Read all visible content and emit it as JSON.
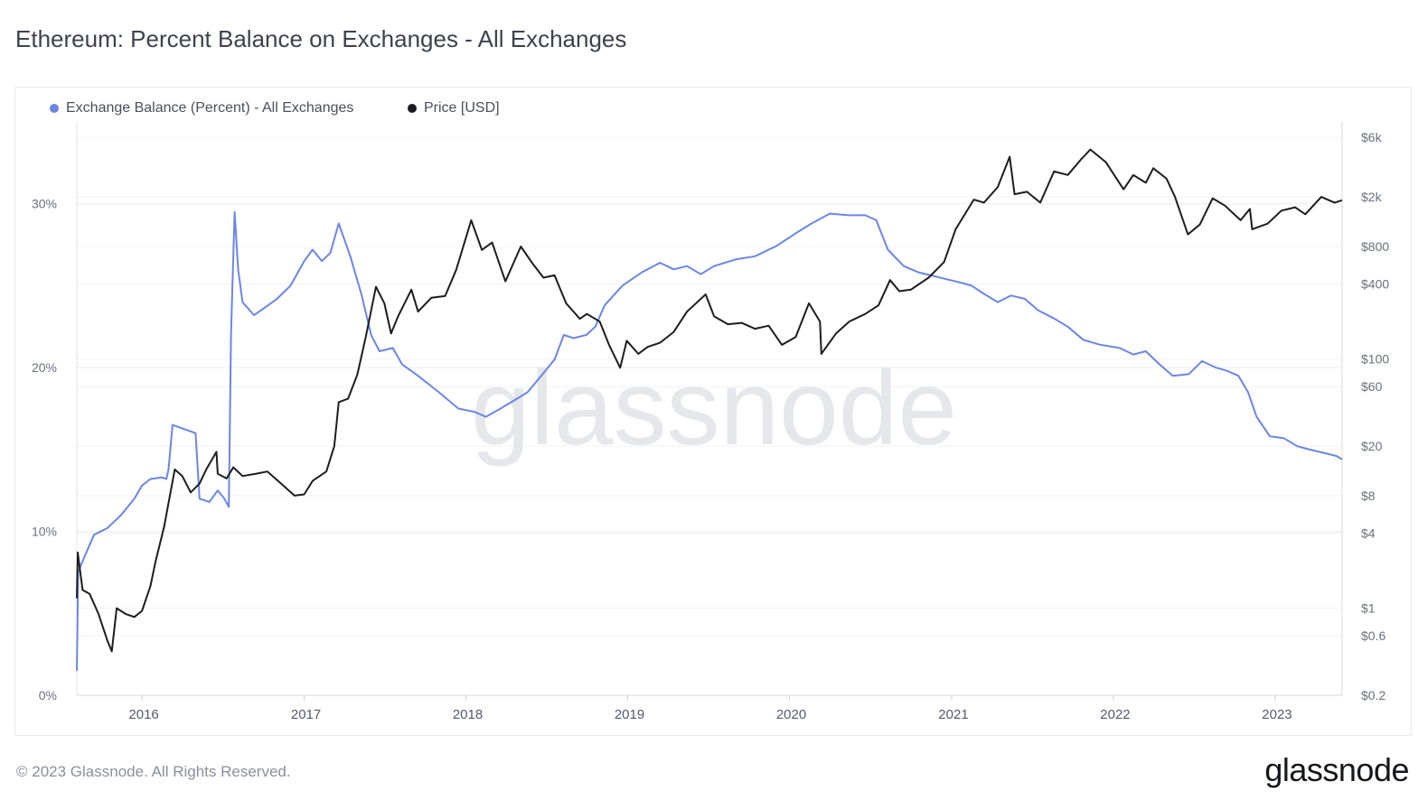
{
  "title": "Ethereum: Percent Balance on Exchanges - All Exchanges",
  "footer": "© 2023 Glassnode. All Rights Reserved.",
  "brand": "glassnode",
  "watermark": "glassnode",
  "colors": {
    "balance": "#6b86e3",
    "price": "#1c1d21",
    "grid": "#ececf0",
    "watermark": "#e6e7ea"
  },
  "chart_data": {
    "type": "line",
    "title": "Ethereum: Percent Balance on Exchanges - All Exchanges",
    "legend_position": "top-left",
    "grid": true,
    "x": {
      "type": "date",
      "range": [
        "2015-08-07",
        "2023-06-01"
      ],
      "ticks": [
        "2016",
        "2017",
        "2018",
        "2019",
        "2020",
        "2021",
        "2022",
        "2023"
      ]
    },
    "y_left": {
      "unit": "percent",
      "range": [
        0,
        35
      ],
      "ticks": [
        {
          "value": 0,
          "label": "0%"
        },
        {
          "value": 10,
          "label": "10%"
        },
        {
          "value": 20,
          "label": "20%"
        },
        {
          "value": 30,
          "label": "30%"
        }
      ]
    },
    "y_right": {
      "scale": "log",
      "unit": "USD",
      "range": [
        0.2,
        8000
      ],
      "ticks": [
        {
          "value": 6000,
          "label": "$6k"
        },
        {
          "value": 2000,
          "label": "$2k"
        },
        {
          "value": 800,
          "label": "$800"
        },
        {
          "value": 400,
          "label": "$400"
        },
        {
          "value": 100,
          "label": "$100"
        },
        {
          "value": 60,
          "label": "$60"
        },
        {
          "value": 20,
          "label": "$20"
        },
        {
          "value": 8,
          "label": "$8"
        },
        {
          "value": 4,
          "label": "$4"
        },
        {
          "value": 1,
          "label": "$1"
        },
        {
          "value": 0.6,
          "label": "$0.6"
        },
        {
          "value": 0.2,
          "label": "$0.2"
        }
      ]
    },
    "series": [
      {
        "name": "Exchange Balance (Percent) - All Exchanges",
        "axis": "left",
        "color": "#6b86e3",
        "points": [
          [
            "2015-08-07",
            1.5
          ],
          [
            "2015-08-10",
            7.5
          ],
          [
            "2015-08-25",
            8.5
          ],
          [
            "2015-09-15",
            9.8
          ],
          [
            "2015-10-15",
            10.2
          ],
          [
            "2015-11-15",
            11.0
          ],
          [
            "2015-12-15",
            12.0
          ],
          [
            "2016-01-01",
            12.8
          ],
          [
            "2016-01-20",
            13.2
          ],
          [
            "2016-02-15",
            13.3
          ],
          [
            "2016-02-25",
            13.2
          ],
          [
            "2016-03-01",
            13.8
          ],
          [
            "2016-03-10",
            16.5
          ],
          [
            "2016-04-10",
            16.2
          ],
          [
            "2016-05-01",
            16.0
          ],
          [
            "2016-05-10",
            12.0
          ],
          [
            "2016-06-01",
            11.8
          ],
          [
            "2016-06-20",
            12.5
          ],
          [
            "2016-07-05",
            12.0
          ],
          [
            "2016-07-15",
            11.5
          ],
          [
            "2016-07-20",
            22.0
          ],
          [
            "2016-07-28",
            29.5
          ],
          [
            "2016-08-05",
            26.0
          ],
          [
            "2016-08-15",
            24.0
          ],
          [
            "2016-09-10",
            23.2
          ],
          [
            "2016-10-01",
            23.6
          ],
          [
            "2016-11-01",
            24.2
          ],
          [
            "2016-12-01",
            25.0
          ],
          [
            "2017-01-01",
            26.5
          ],
          [
            "2017-01-20",
            27.2
          ],
          [
            "2017-02-10",
            26.5
          ],
          [
            "2017-03-01",
            27.0
          ],
          [
            "2017-03-20",
            28.8
          ],
          [
            "2017-04-15",
            26.8
          ],
          [
            "2017-05-10",
            24.5
          ],
          [
            "2017-06-01",
            22.0
          ],
          [
            "2017-06-20",
            21.0
          ],
          [
            "2017-07-20",
            21.2
          ],
          [
            "2017-08-10",
            20.2
          ],
          [
            "2017-09-15",
            19.5
          ],
          [
            "2017-11-01",
            18.5
          ],
          [
            "2017-12-15",
            17.5
          ],
          [
            "2018-01-20",
            17.3
          ],
          [
            "2018-02-15",
            17.0
          ],
          [
            "2018-03-20",
            17.5
          ],
          [
            "2018-04-20",
            18.0
          ],
          [
            "2018-05-20",
            18.5
          ],
          [
            "2018-06-20",
            19.5
          ],
          [
            "2018-07-20",
            20.5
          ],
          [
            "2018-08-10",
            22.0
          ],
          [
            "2018-09-01",
            21.8
          ],
          [
            "2018-09-30",
            22.0
          ],
          [
            "2018-10-20",
            22.5
          ],
          [
            "2018-11-10",
            23.8
          ],
          [
            "2018-12-20",
            25.0
          ],
          [
            "2019-02-01",
            25.8
          ],
          [
            "2019-03-15",
            26.4
          ],
          [
            "2019-04-15",
            26.0
          ],
          [
            "2019-05-15",
            26.2
          ],
          [
            "2019-06-15",
            25.7
          ],
          [
            "2019-07-15",
            26.2
          ],
          [
            "2019-09-01",
            26.6
          ],
          [
            "2019-10-15",
            26.8
          ],
          [
            "2019-12-01",
            27.4
          ],
          [
            "2020-01-15",
            28.2
          ],
          [
            "2020-02-20",
            28.8
          ],
          [
            "2020-04-01",
            29.4
          ],
          [
            "2020-05-15",
            29.3
          ],
          [
            "2020-06-20",
            29.3
          ],
          [
            "2020-07-15",
            29.0
          ],
          [
            "2020-08-10",
            27.2
          ],
          [
            "2020-09-15",
            26.2
          ],
          [
            "2020-10-20",
            25.8
          ],
          [
            "2020-11-20",
            25.6
          ],
          [
            "2020-12-20",
            25.4
          ],
          [
            "2021-01-20",
            25.2
          ],
          [
            "2021-02-15",
            25.0
          ],
          [
            "2021-03-15",
            24.5
          ],
          [
            "2021-04-15",
            24.0
          ],
          [
            "2021-05-15",
            24.4
          ],
          [
            "2021-06-15",
            24.2
          ],
          [
            "2021-07-15",
            23.5
          ],
          [
            "2021-08-20",
            23.0
          ],
          [
            "2021-09-20",
            22.5
          ],
          [
            "2021-10-25",
            21.7
          ],
          [
            "2021-12-01",
            21.4
          ],
          [
            "2022-01-15",
            21.2
          ],
          [
            "2022-02-15",
            20.8
          ],
          [
            "2022-03-15",
            21.0
          ],
          [
            "2022-04-15",
            20.2
          ],
          [
            "2022-05-15",
            19.5
          ],
          [
            "2022-06-20",
            19.6
          ],
          [
            "2022-07-20",
            20.4
          ],
          [
            "2022-08-20",
            20.0
          ],
          [
            "2022-09-15",
            19.8
          ],
          [
            "2022-10-10",
            19.5
          ],
          [
            "2022-11-01",
            18.5
          ],
          [
            "2022-11-20",
            17.0
          ],
          [
            "2022-12-20",
            15.8
          ],
          [
            "2023-01-20",
            15.7
          ],
          [
            "2023-02-20",
            15.2
          ],
          [
            "2023-03-20",
            15.0
          ],
          [
            "2023-04-20",
            14.8
          ],
          [
            "2023-05-20",
            14.6
          ],
          [
            "2023-06-01",
            14.4
          ]
        ]
      },
      {
        "name": "Price [USD]",
        "axis": "right",
        "color": "#1c1d21",
        "points": [
          [
            "2015-08-07",
            1.2
          ],
          [
            "2015-08-09",
            2.8
          ],
          [
            "2015-08-20",
            1.4
          ],
          [
            "2015-09-05",
            1.3
          ],
          [
            "2015-09-25",
            0.9
          ],
          [
            "2015-10-15",
            0.55
          ],
          [
            "2015-10-25",
            0.45
          ],
          [
            "2015-11-05",
            1.0
          ],
          [
            "2015-11-25",
            0.9
          ],
          [
            "2015-12-15",
            0.85
          ],
          [
            "2016-01-01",
            0.95
          ],
          [
            "2016-01-20",
            1.5
          ],
          [
            "2016-02-01",
            2.4
          ],
          [
            "2016-02-20",
            4.5
          ],
          [
            "2016-03-01",
            7.0
          ],
          [
            "2016-03-15",
            13.0
          ],
          [
            "2016-04-01",
            11.5
          ],
          [
            "2016-04-20",
            8.5
          ],
          [
            "2016-05-10",
            10.0
          ],
          [
            "2016-05-25",
            13.0
          ],
          [
            "2016-06-17",
            18.0
          ],
          [
            "2016-06-20",
            12.0
          ],
          [
            "2016-07-10",
            11.0
          ],
          [
            "2016-07-25",
            13.5
          ],
          [
            "2016-08-15",
            11.5
          ],
          [
            "2016-09-15",
            12.0
          ],
          [
            "2016-10-10",
            12.5
          ],
          [
            "2016-11-10",
            10.0
          ],
          [
            "2016-12-10",
            8.0
          ],
          [
            "2017-01-01",
            8.2
          ],
          [
            "2017-01-20",
            10.5
          ],
          [
            "2017-02-20",
            12.5
          ],
          [
            "2017-03-10",
            20.0
          ],
          [
            "2017-03-20",
            45.0
          ],
          [
            "2017-04-10",
            48.0
          ],
          [
            "2017-05-01",
            75.0
          ],
          [
            "2017-05-20",
            150.0
          ],
          [
            "2017-06-12",
            380.0
          ],
          [
            "2017-07-01",
            280.0
          ],
          [
            "2017-07-16",
            160.0
          ],
          [
            "2017-08-01",
            220.0
          ],
          [
            "2017-08-31",
            360.0
          ],
          [
            "2017-09-15",
            240.0
          ],
          [
            "2017-10-15",
            310.0
          ],
          [
            "2017-11-15",
            320.0
          ],
          [
            "2017-12-10",
            520.0
          ],
          [
            "2018-01-13",
            1300.0
          ],
          [
            "2018-02-06",
            750.0
          ],
          [
            "2018-03-01",
            860.0
          ],
          [
            "2018-03-31",
            420.0
          ],
          [
            "2018-05-05",
            800.0
          ],
          [
            "2018-06-01",
            580.0
          ],
          [
            "2018-06-25",
            450.0
          ],
          [
            "2018-07-20",
            470.0
          ],
          [
            "2018-08-15",
            280.0
          ],
          [
            "2018-09-15",
            210.0
          ],
          [
            "2018-10-01",
            230.0
          ],
          [
            "2018-10-30",
            200.0
          ],
          [
            "2018-11-20",
            130.0
          ],
          [
            "2018-12-15",
            85.0
          ],
          [
            "2018-12-30",
            140.0
          ],
          [
            "2019-01-25",
            110.0
          ],
          [
            "2019-02-15",
            125.0
          ],
          [
            "2019-03-15",
            135.0
          ],
          [
            "2019-04-15",
            165.0
          ],
          [
            "2019-05-15",
            240.0
          ],
          [
            "2019-06-26",
            330.0
          ],
          [
            "2019-07-15",
            220.0
          ],
          [
            "2019-08-15",
            190.0
          ],
          [
            "2019-09-15",
            195.0
          ],
          [
            "2019-10-15",
            175.0
          ],
          [
            "2019-11-15",
            185.0
          ],
          [
            "2019-12-15",
            130.0
          ],
          [
            "2020-01-15",
            150.0
          ],
          [
            "2020-02-14",
            280.0
          ],
          [
            "2020-03-10",
            200.0
          ],
          [
            "2020-03-13",
            110.0
          ],
          [
            "2020-04-15",
            160.0
          ],
          [
            "2020-05-15",
            200.0
          ],
          [
            "2020-06-20",
            230.0
          ],
          [
            "2020-07-20",
            270.0
          ],
          [
            "2020-08-15",
            430.0
          ],
          [
            "2020-09-05",
            350.0
          ],
          [
            "2020-10-01",
            360.0
          ],
          [
            "2020-11-10",
            450.0
          ],
          [
            "2020-12-15",
            600.0
          ],
          [
            "2021-01-10",
            1100.0
          ],
          [
            "2021-02-20",
            1900.0
          ],
          [
            "2021-03-15",
            1800.0
          ],
          [
            "2021-04-15",
            2400.0
          ],
          [
            "2021-05-12",
            4200.0
          ],
          [
            "2021-05-23",
            2100.0
          ],
          [
            "2021-06-20",
            2200.0
          ],
          [
            "2021-07-20",
            1800.0
          ],
          [
            "2021-08-20",
            3200.0
          ],
          [
            "2021-09-20",
            3000.0
          ],
          [
            "2021-10-20",
            4000.0
          ],
          [
            "2021-11-10",
            4800.0
          ],
          [
            "2021-12-15",
            3800.0
          ],
          [
            "2022-01-24",
            2300.0
          ],
          [
            "2022-02-15",
            3000.0
          ],
          [
            "2022-03-15",
            2600.0
          ],
          [
            "2022-04-01",
            3400.0
          ],
          [
            "2022-05-01",
            2800.0
          ],
          [
            "2022-05-20",
            2000.0
          ],
          [
            "2022-06-18",
            1000.0
          ],
          [
            "2022-07-15",
            1200.0
          ],
          [
            "2022-08-13",
            1950.0
          ],
          [
            "2022-09-10",
            1700.0
          ],
          [
            "2022-10-15",
            1300.0
          ],
          [
            "2022-11-05",
            1600.0
          ],
          [
            "2022-11-10",
            1100.0
          ],
          [
            "2022-12-15",
            1220.0
          ],
          [
            "2023-01-15",
            1550.0
          ],
          [
            "2023-02-15",
            1650.0
          ],
          [
            "2023-03-10",
            1450.0
          ],
          [
            "2023-04-15",
            2000.0
          ],
          [
            "2023-05-15",
            1800.0
          ],
          [
            "2023-06-01",
            1880.0
          ]
        ]
      }
    ]
  }
}
